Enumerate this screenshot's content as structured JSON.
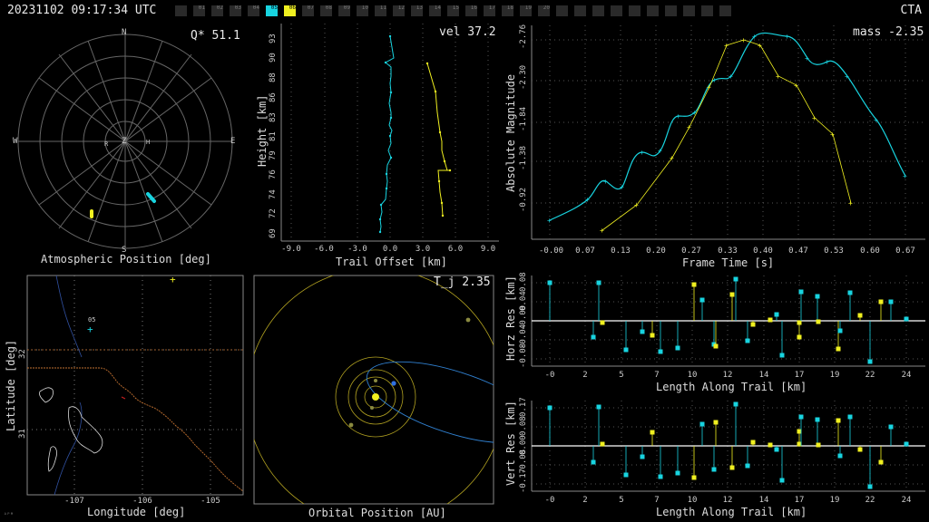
{
  "header": {
    "timestamp": "20231102 09:17:34 UTC",
    "network": "CTA",
    "stations": [
      {
        "label": "",
        "state": "off"
      },
      {
        "label": "01",
        "state": "off"
      },
      {
        "label": "02",
        "state": "off"
      },
      {
        "label": "03",
        "state": "off"
      },
      {
        "label": "04",
        "state": "off"
      },
      {
        "label": "05",
        "state": "cyan"
      },
      {
        "label": "06",
        "state": "yellow"
      },
      {
        "label": "07",
        "state": "off"
      },
      {
        "label": "08",
        "state": "off"
      },
      {
        "label": "09",
        "state": "off"
      },
      {
        "label": "10",
        "state": "off"
      },
      {
        "label": "11",
        "state": "off"
      },
      {
        "label": "12",
        "state": "off"
      },
      {
        "label": "13",
        "state": "off"
      },
      {
        "label": "14",
        "state": "off"
      },
      {
        "label": "15",
        "state": "off"
      },
      {
        "label": "16",
        "state": "off"
      },
      {
        "label": "17",
        "state": "off"
      },
      {
        "label": "18",
        "state": "off"
      },
      {
        "label": "19",
        "state": "off"
      },
      {
        "label": "20",
        "state": "off"
      },
      {
        "label": "",
        "state": "off"
      },
      {
        "label": "",
        "state": "off"
      },
      {
        "label": "",
        "state": "off"
      },
      {
        "label": "",
        "state": "off"
      },
      {
        "label": "",
        "state": "off"
      },
      {
        "label": "",
        "state": "off"
      },
      {
        "label": "",
        "state": "off"
      },
      {
        "label": "",
        "state": "off"
      },
      {
        "label": "",
        "state": "off"
      },
      {
        "label": "",
        "state": "off"
      }
    ]
  },
  "colors": {
    "cyan": "#18d4e0",
    "yellow": "#f0f020",
    "grid": "#666666",
    "axis": "#cccccc"
  },
  "polar": {
    "readout": "Q* 51.1",
    "title": "Atmospheric Position [deg]",
    "dirs": {
      "n": "N",
      "s": "S",
      "e": "E",
      "w": "W",
      "z": "Z",
      "r": "R",
      "h": "H"
    }
  },
  "trail": {
    "readout": "vel 37.2",
    "xlabel": "Trail Offset [km]",
    "ylabel": "Height [km]",
    "xticks": [
      "-9.0",
      "-6.0",
      "-3.0",
      "0.0",
      "3.0",
      "6.0",
      "9.0"
    ],
    "yticks": [
      "93",
      "90",
      "88",
      "86",
      "83",
      "81",
      "79",
      "76",
      "74",
      "72",
      "69"
    ]
  },
  "mag": {
    "readout": "mass -2.35",
    "xlabel": "Frame Time [s]",
    "ylabel": "Absolute Magnitude",
    "xticks": [
      "-0.00",
      "0.07",
      "0.13",
      "0.20",
      "0.27",
      "0.33",
      "0.40",
      "0.47",
      "0.53",
      "0.60",
      "0.67"
    ],
    "yticks": [
      "-2.76",
      "-2.30",
      "-1.84",
      "-1.38",
      "-0.92"
    ]
  },
  "map": {
    "xlabel": "Longitude [deg]",
    "ylabel": "Latitude [deg]",
    "xticks": [
      "-107",
      "-106",
      "-105"
    ],
    "yticks": [
      "32",
      "31"
    ],
    "station_label": "05"
  },
  "orbit": {
    "readout": "T_j 2.35",
    "title": "Orbital Position [AU]"
  },
  "horz": {
    "xlabel": "Length Along Trail [km]",
    "ylabel": "Horz Res [km]",
    "xticks": [
      "-0",
      "2",
      "5",
      "7",
      "10",
      "12",
      "14",
      "17",
      "19",
      "22",
      "24"
    ],
    "yticks": [
      "0.08",
      "0.04",
      "-0.00",
      "-0.04",
      "-0.08"
    ]
  },
  "vert": {
    "xlabel": "Length Along Trail [km]",
    "ylabel": "Vert Res [km]",
    "xticks": [
      "-0",
      "2",
      "5",
      "7",
      "10",
      "12",
      "14",
      "17",
      "19",
      "22",
      "24"
    ],
    "yticks": [
      "0.17",
      "0.08",
      "0.00",
      "-0.08",
      "-0.17"
    ]
  },
  "corner_mark": "ᴬᴾᴹ"
}
